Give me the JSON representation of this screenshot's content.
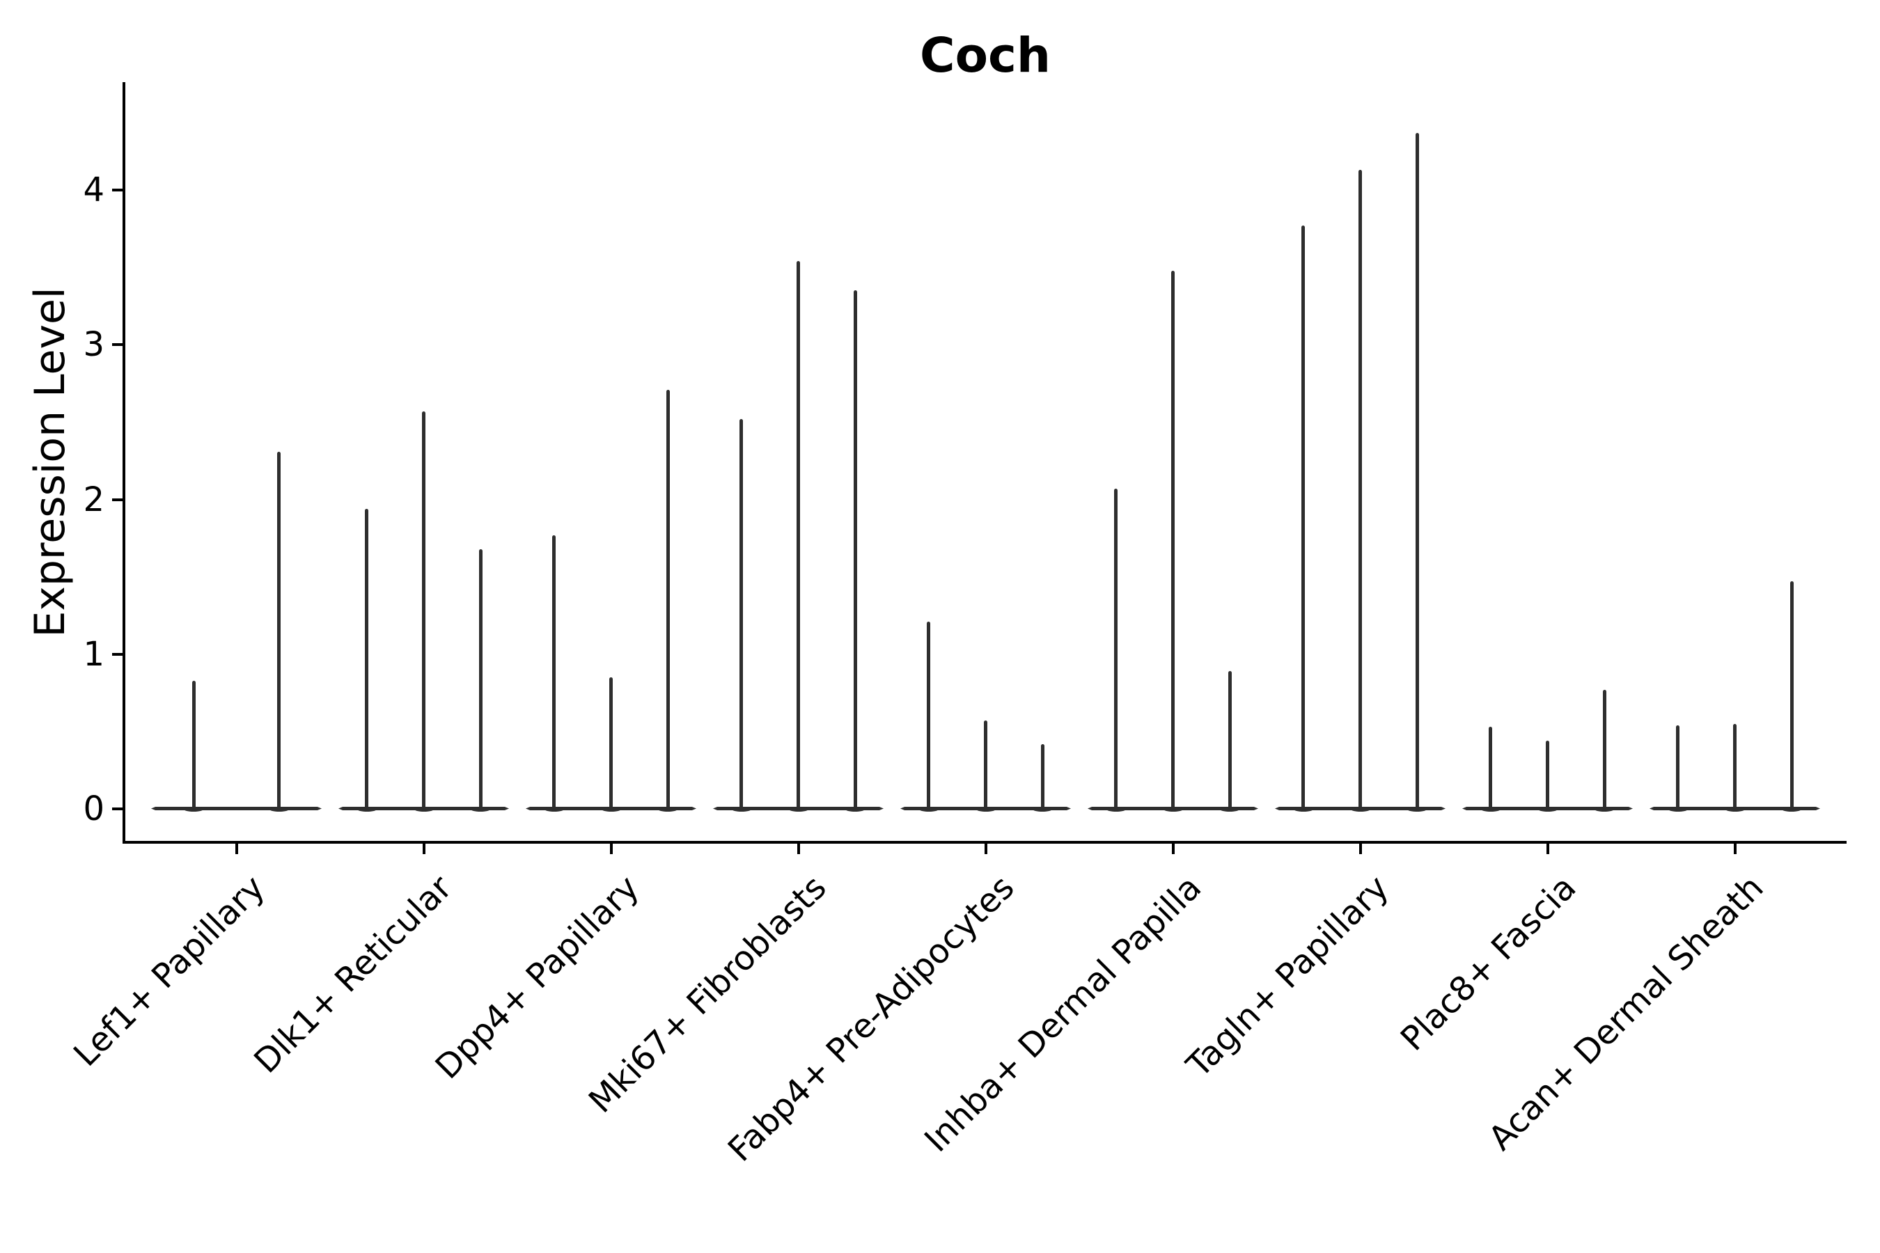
{
  "chart_data": {
    "type": "violin",
    "title": "Coch",
    "xlabel": "",
    "ylabel": "Expression Level",
    "yticks": [
      0,
      1,
      2,
      3,
      4
    ],
    "ylim": [
      -0.22,
      4.7
    ],
    "grid": false,
    "legend": "none",
    "description": "Expression-collapsed violins: each cell-type category shows thin density spikes rising from a flat base at 0; spike tip = max expression level per violin.",
    "categories": [
      {
        "label": "Lef1+ Papillary",
        "values": [
          0.83,
          2.31
        ]
      },
      {
        "label": "Dlk1+ Reticular",
        "values": [
          1.94,
          2.57,
          1.68
        ]
      },
      {
        "label": "Dpp4+ Papillary",
        "values": [
          1.77,
          0.85,
          2.71
        ]
      },
      {
        "label": "Mki67+ Fibroblasts",
        "values": [
          2.52,
          3.54,
          3.35
        ]
      },
      {
        "label": "Fabp4+ Pre-Adipocytes",
        "values": [
          1.21,
          0.57,
          0.42
        ]
      },
      {
        "label": "Inhba+ Dermal Papilla",
        "values": [
          2.07,
          3.48,
          0.89
        ]
      },
      {
        "label": "Tagln+ Papillary",
        "values": [
          3.77,
          4.13,
          4.37
        ]
      },
      {
        "label": "Plac8+ Fascia",
        "values": [
          0.53,
          0.44,
          0.77
        ]
      },
      {
        "label": "Acan+ Dermal Sheath",
        "values": [
          0.54,
          0.55,
          1.47
        ]
      }
    ],
    "colors": {
      "violin": "#2e2e2e",
      "axis": "#000000",
      "text": "#000000",
      "background": "#ffffff"
    }
  }
}
